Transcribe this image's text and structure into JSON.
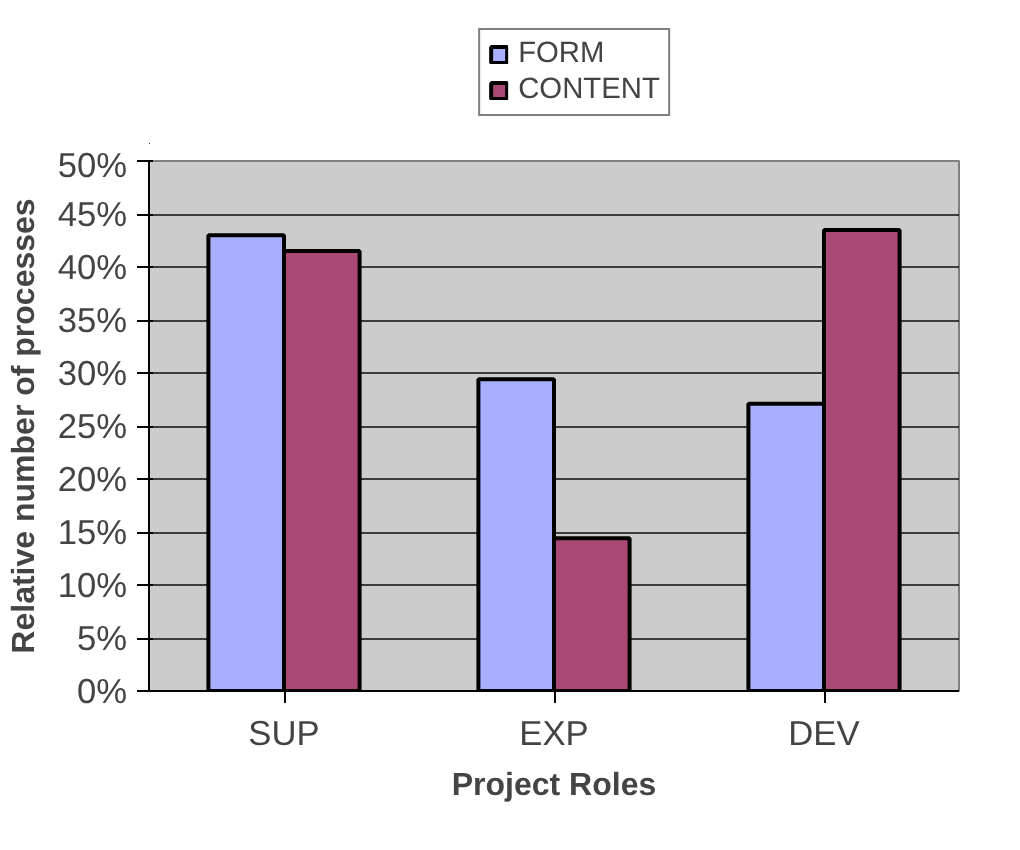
{
  "chart_data": {
    "type": "bar",
    "xlabel": "Project Roles",
    "ylabel": "Relative number of processes",
    "categories": [
      "SUP",
      "EXP",
      "DEV"
    ],
    "series": [
      {
        "name": "FORM",
        "color": "#a9aeff",
        "values": [
          43.0,
          29.4,
          27.1
        ]
      },
      {
        "name": "CONTENT",
        "color": "#aa4975",
        "values": [
          41.5,
          14.4,
          43.5
        ]
      }
    ],
    "ylim": [
      0,
      50
    ],
    "yticks": [
      {
        "value": 0,
        "label": "0%"
      },
      {
        "value": 5,
        "label": "5%"
      },
      {
        "value": 10,
        "label": "10%"
      },
      {
        "value": 15,
        "label": "15%"
      },
      {
        "value": 20,
        "label": "20%"
      },
      {
        "value": 25,
        "label": "25%"
      },
      {
        "value": 30,
        "label": "30%"
      },
      {
        "value": 35,
        "label": "35%"
      },
      {
        "value": 40,
        "label": "40%"
      },
      {
        "value": 45,
        "label": "45%"
      },
      {
        "value": 50,
        "label": "50%"
      }
    ],
    "grid": "y",
    "legend": "top"
  }
}
